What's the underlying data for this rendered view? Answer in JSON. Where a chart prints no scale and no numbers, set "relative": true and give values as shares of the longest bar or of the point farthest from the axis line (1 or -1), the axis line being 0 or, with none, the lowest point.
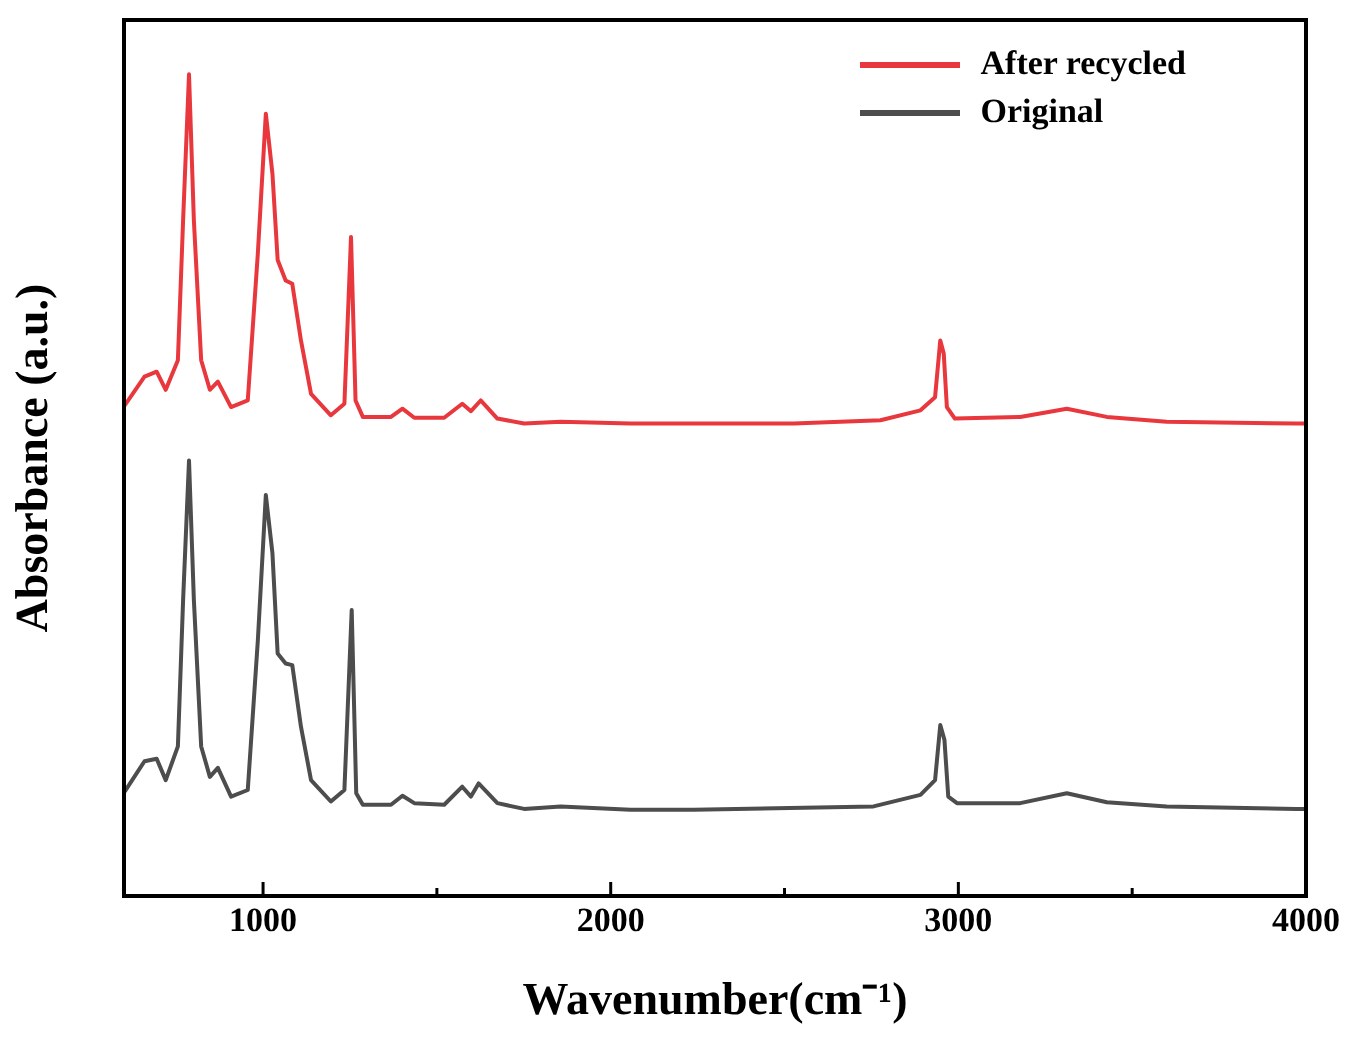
{
  "chart_data": {
    "type": "line",
    "relative": true,
    "xlabel": "Wavenumber(cm⁻¹)",
    "ylabel": "Absorbance (a.u.)",
    "xlim": [
      600,
      4000
    ],
    "xticks": [
      1000,
      {
        "value": 1500,
        "label": null
      },
      2000,
      {
        "value": 2500,
        "label": null
      },
      3000,
      {
        "value": 3500,
        "label": null
      },
      4000
    ],
    "grid": false,
    "legend": "top right",
    "marker": "none",
    "line_style": "solid",
    "series": [
      {
        "name": "After recycled",
        "color": "#e8383d",
        "x": [
          602,
          659,
          694,
          720,
          755,
          770,
          787,
          801,
          822,
          847,
          870,
          908,
          956,
          985,
          1008,
          1027,
          1042,
          1065,
          1084,
          1109,
          1138,
          1195,
          1234,
          1253,
          1266,
          1287,
          1368,
          1401,
          1435,
          1521,
          1573,
          1598,
          1626,
          1674,
          1751,
          1856,
          2057,
          2527,
          2776,
          2891,
          2933,
          2948,
          2958,
          2967,
          2990,
          3178,
          3312,
          3427,
          3599,
          3973,
          4000
        ],
        "values": [
          0.597,
          0.632,
          0.638,
          0.616,
          0.652,
          0.822,
          1.0,
          0.822,
          0.652,
          0.616,
          0.626,
          0.595,
          0.603,
          0.782,
          0.952,
          0.879,
          0.774,
          0.749,
          0.745,
          0.676,
          0.611,
          0.585,
          0.599,
          0.802,
          0.603,
          0.583,
          0.583,
          0.593,
          0.582,
          0.582,
          0.599,
          0.59,
          0.603,
          0.581,
          0.575,
          0.577,
          0.575,
          0.575,
          0.579,
          0.591,
          0.607,
          0.676,
          0.66,
          0.595,
          0.581,
          0.583,
          0.593,
          0.583,
          0.577,
          0.575,
          0.575
        ]
      },
      {
        "name": "Original",
        "color": "#4d4d4d",
        "x": [
          602,
          659,
          694,
          720,
          755,
          770,
          787,
          801,
          822,
          847,
          870,
          908,
          956,
          985,
          1008,
          1027,
          1042,
          1065,
          1084,
          1109,
          1138,
          1195,
          1234,
          1255,
          1268,
          1287,
          1368,
          1401,
          1435,
          1521,
          1573,
          1598,
          1620,
          1674,
          1751,
          1856,
          2057,
          2239,
          2756,
          2891,
          2933,
          2948,
          2960,
          2971,
          2996,
          3178,
          3312,
          3427,
          3599,
          3973,
          4000
        ],
        "values": [
          0.127,
          0.164,
          0.167,
          0.141,
          0.182,
          0.36,
          0.53,
          0.36,
          0.182,
          0.145,
          0.156,
          0.121,
          0.129,
          0.311,
          0.488,
          0.417,
          0.295,
          0.283,
          0.281,
          0.206,
          0.141,
          0.115,
          0.129,
          0.348,
          0.125,
          0.111,
          0.111,
          0.122,
          0.113,
          0.111,
          0.133,
          0.121,
          0.137,
          0.113,
          0.106,
          0.109,
          0.105,
          0.105,
          0.109,
          0.123,
          0.141,
          0.208,
          0.19,
          0.121,
          0.113,
          0.113,
          0.125,
          0.114,
          0.109,
          0.106,
          0.106
        ]
      }
    ]
  }
}
